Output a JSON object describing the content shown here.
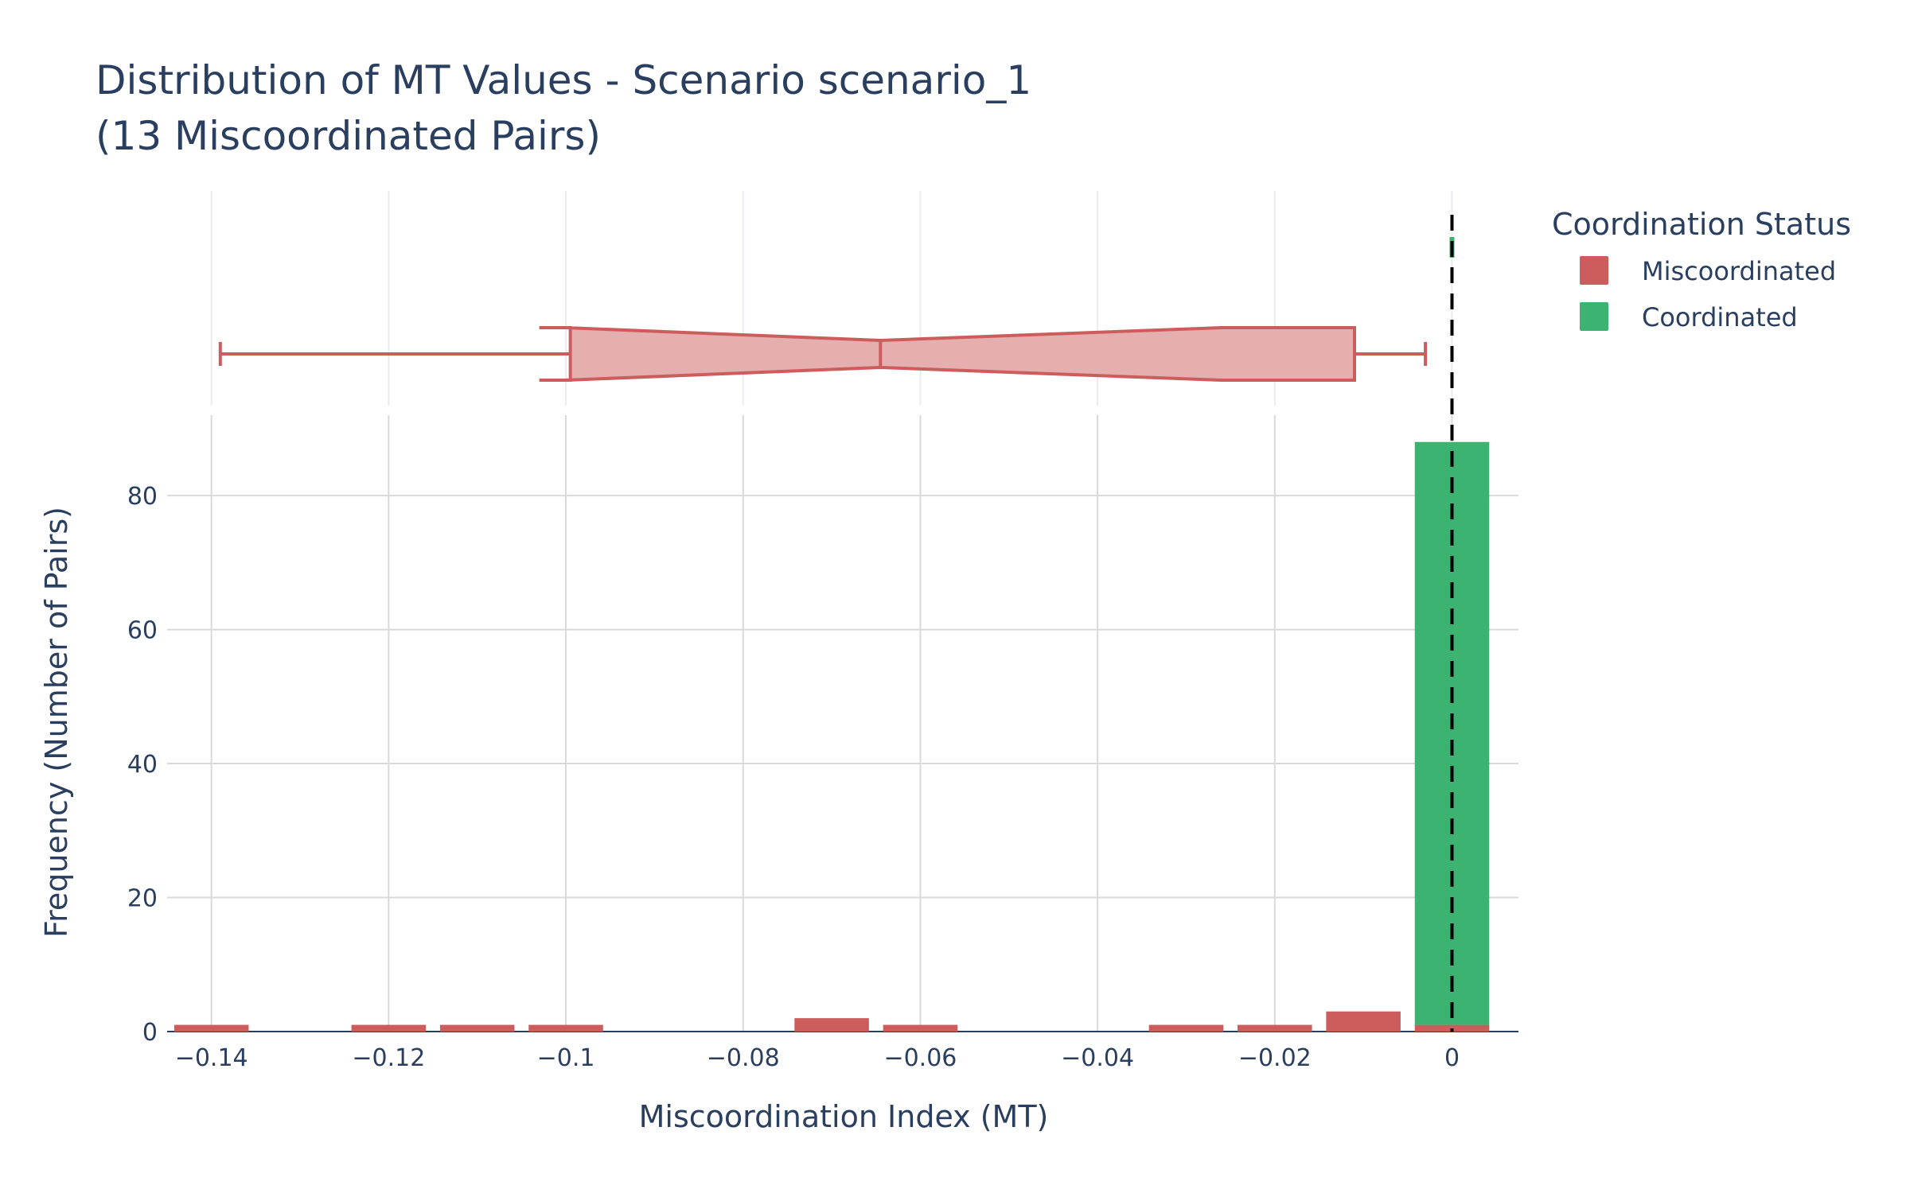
{
  "title_line1": "Distribution of MT Values - Scenario scenario_1",
  "title_line2": "(13 Miscoordinated Pairs)",
  "colors": {
    "miscoordinated": "#cd5c5c",
    "miscoordinated_fill": "#e5afaf",
    "coordinated": "#3cb371",
    "grid": "#d9d9d9",
    "text": "#2a3f5f",
    "threshold_line": "#000000"
  },
  "chart_data": {
    "type": "bar",
    "subtype": "stacked-histogram-with-marginal-box",
    "title": "Distribution of MT Values - Scenario scenario_1 (13 Miscoordinated Pairs)",
    "xlabel": "Miscoordination Index (MT)",
    "ylabel": "Frequency (Number of Pairs)",
    "xlim": [
      -0.145,
      0.0075
    ],
    "ylim": [
      0,
      92
    ],
    "x_ticks": [
      -0.14,
      -0.12,
      -0.1,
      -0.08,
      -0.06,
      -0.04,
      -0.02,
      0
    ],
    "x_tick_labels": [
      "−0.14",
      "−0.12",
      "−0.1",
      "−0.08",
      "−0.06",
      "−0.04",
      "−0.02",
      "0"
    ],
    "y_ticks": [
      0,
      20,
      40,
      60,
      80
    ],
    "y_tick_labels": [
      "0",
      "20",
      "40",
      "60",
      "80"
    ],
    "grid": true,
    "legend_title": "Coordination Status",
    "legend_position": "top-right",
    "bin_width": 0.01,
    "bin_centers": [
      -0.14,
      -0.13,
      -0.12,
      -0.11,
      -0.1,
      -0.09,
      -0.08,
      -0.07,
      -0.06,
      -0.05,
      -0.04,
      -0.03,
      -0.02,
      -0.01,
      0
    ],
    "series": [
      {
        "name": "Miscoordinated",
        "color": "#cd5c5c",
        "values": [
          1,
          0,
          1,
          1,
          1,
          0,
          0,
          2,
          1,
          0,
          0,
          1,
          1,
          3,
          1
        ]
      },
      {
        "name": "Coordinated",
        "color": "#3cb371",
        "values": [
          0,
          0,
          0,
          0,
          0,
          0,
          0,
          0,
          0,
          0,
          0,
          0,
          0,
          0,
          87
        ]
      }
    ],
    "threshold_line": {
      "x": 0,
      "style": "dashed"
    },
    "box_marginal": {
      "miscoordinated": {
        "min": -0.139,
        "q1": -0.0995,
        "median": -0.0645,
        "q3": -0.011,
        "max": -0.003,
        "notch_low": -0.1,
        "notch_high": -0.026
      },
      "coordinated": {
        "value": 0
      }
    }
  }
}
